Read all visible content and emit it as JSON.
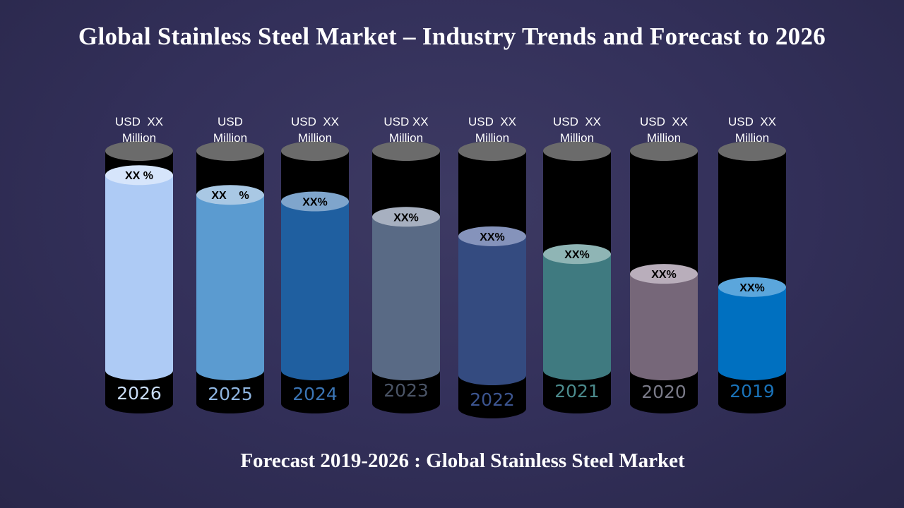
{
  "title": "Global Stainless Steel Market – Industry Trends and Forecast to 2026",
  "footer": "Forecast 2019-2026 : Global Stainless Steel Market",
  "chart_data": {
    "type": "bar",
    "style": "3d cylinders",
    "categories": [
      "2026",
      "2025",
      "2024",
      "2023",
      "2022",
      "2021",
      "2020",
      "2019"
    ],
    "value_labels": [
      [
        "USD  XX",
        "Million"
      ],
      [
        "USD",
        "Million"
      ],
      [
        "USD  XX",
        "Million"
      ],
      [
        "USD XX",
        "Million"
      ],
      [
        "USD  XX",
        "Million"
      ],
      [
        "USD  XX",
        "Million"
      ],
      [
        "USD  XX",
        "Million"
      ],
      [
        "USD  XX",
        "Million"
      ]
    ],
    "percent_labels": [
      "XX %",
      "XX    %",
      "XX%",
      "XX%",
      "XX%",
      "XX%",
      "XX%",
      "XX%"
    ],
    "fill_level_percent": [
      89,
      80,
      77,
      70,
      62,
      53,
      44,
      38
    ],
    "colors": {
      "fill": [
        "#aecbf5",
        "#5b9bd0",
        "#1f5fa0",
        "#596a85",
        "#344b80",
        "#3f7a80",
        "#766779",
        "#0070c0"
      ],
      "fill_top": [
        "#d6e5fb",
        "#a9c8e4",
        "#7fa5cc",
        "#a7b0c0",
        "#8593bb",
        "#8fb5b5",
        "#b9aebb",
        "#5ba6dc"
      ],
      "year_text": [
        "#c9dcf5",
        "#8fb5e0",
        "#3b75b5",
        "#4a5466",
        "#3c5590",
        "#4b8a8c",
        "#7a7a88",
        "#1a72b8"
      ],
      "cylinder_body": "#000000",
      "cylinder_cap": "#6b6b6b"
    }
  }
}
